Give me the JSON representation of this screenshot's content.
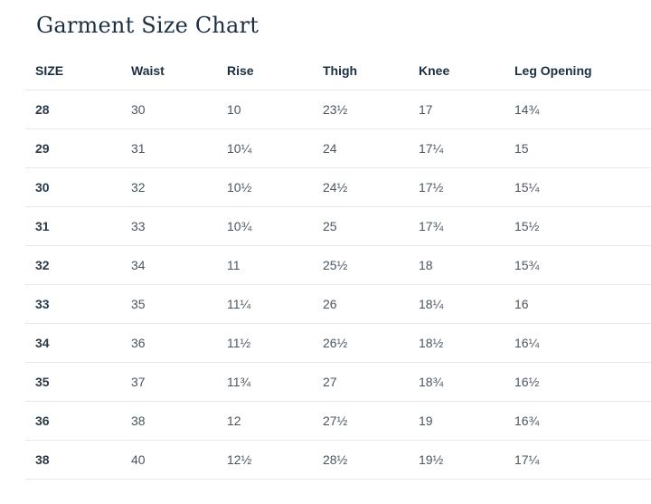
{
  "title": "Garment Size Chart",
  "columns": [
    "SIZE",
    "Waist",
    "Rise",
    "Thigh",
    "Knee",
    "Leg Opening"
  ],
  "rows": [
    [
      "28",
      "30",
      "10",
      "23½",
      "17",
      "14¾"
    ],
    [
      "29",
      "31",
      "10¼",
      "24",
      "17¼",
      "15"
    ],
    [
      "30",
      "32",
      "10½",
      "24½",
      "17½",
      "15¼"
    ],
    [
      "31",
      "33",
      "10¾",
      "25",
      "17¾",
      "15½"
    ],
    [
      "32",
      "34",
      "11",
      "25½",
      "18",
      "15¾"
    ],
    [
      "33",
      "35",
      "11¼",
      "26",
      "18¼",
      "16"
    ],
    [
      "34",
      "36",
      "11½",
      "26½",
      "18½",
      "16¼"
    ],
    [
      "35",
      "37",
      "11¾",
      "27",
      "18¾",
      "16½"
    ],
    [
      "36",
      "38",
      "12",
      "27½",
      "19",
      "16¾"
    ],
    [
      "38",
      "40",
      "12½",
      "28½",
      "19½",
      "17¼"
    ]
  ]
}
